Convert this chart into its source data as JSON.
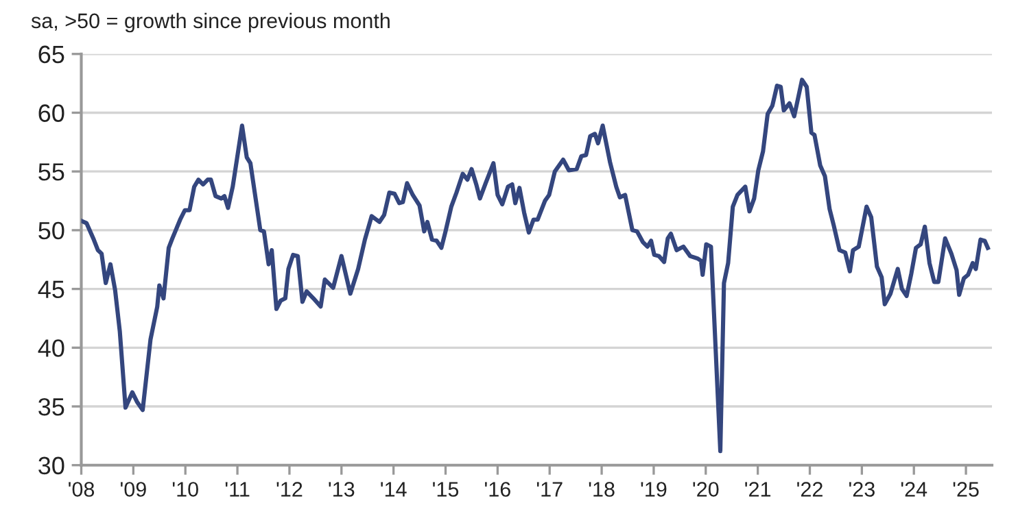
{
  "chart_data": {
    "type": "line",
    "subtitle": "sa, >50 = growth since previous month",
    "x": [
      2008.0,
      2008.1,
      2008.24,
      2008.32,
      2008.39,
      2008.47,
      2008.56,
      2008.65,
      2008.74,
      2008.85,
      2008.98,
      2009.07,
      2009.18,
      2009.33,
      2009.46,
      2009.5,
      2009.58,
      2009.68,
      2009.75,
      2009.9,
      2009.99,
      2010.08,
      2010.17,
      2010.25,
      2010.34,
      2010.43,
      2010.49,
      2010.58,
      2010.69,
      2010.75,
      2010.82,
      2010.91,
      2011.09,
      2011.18,
      2011.25,
      2011.35,
      2011.44,
      2011.51,
      2011.6,
      2011.66,
      2011.75,
      2011.83,
      2011.92,
      2011.98,
      2012.07,
      2012.16,
      2012.25,
      2012.33,
      2012.46,
      2012.6,
      2012.68,
      2012.84,
      2013.0,
      2013.17,
      2013.32,
      2013.45,
      2013.58,
      2013.73,
      2013.82,
      2013.92,
      2014.02,
      2014.11,
      2014.18,
      2014.26,
      2014.37,
      2014.5,
      2014.59,
      2014.65,
      2014.74,
      2014.83,
      2014.92,
      2015.0,
      2015.11,
      2015.21,
      2015.33,
      2015.42,
      2015.5,
      2015.59,
      2015.66,
      2015.77,
      2015.92,
      2016.0,
      2016.09,
      2016.2,
      2016.28,
      2016.34,
      2016.42,
      2016.51,
      2016.6,
      2016.69,
      2016.77,
      2016.91,
      2016.99,
      2017.1,
      2017.26,
      2017.37,
      2017.52,
      2017.61,
      2017.7,
      2017.78,
      2017.87,
      2017.93,
      2018.02,
      2018.16,
      2018.28,
      2018.35,
      2018.45,
      2018.59,
      2018.68,
      2018.79,
      2018.88,
      2018.95,
      2019.01,
      2019.1,
      2019.2,
      2019.27,
      2019.33,
      2019.44,
      2019.57,
      2019.7,
      2019.84,
      2019.91,
      2019.94,
      2020.01,
      2020.1,
      2020.28,
      2020.35,
      2020.43,
      2020.52,
      2020.61,
      2020.76,
      2020.84,
      2020.93,
      2021.01,
      2021.1,
      2021.19,
      2021.28,
      2021.37,
      2021.44,
      2021.5,
      2021.61,
      2021.7,
      2021.85,
      2021.94,
      2022.03,
      2022.09,
      2022.2,
      2022.29,
      2022.38,
      2022.46,
      2022.57,
      2022.68,
      2022.77,
      2022.83,
      2022.94,
      2023.09,
      2023.18,
      2023.29,
      2023.38,
      2023.44,
      2023.55,
      2023.69,
      2023.77,
      2023.86,
      2023.95,
      2024.04,
      2024.13,
      2024.21,
      2024.3,
      2024.39,
      2024.47,
      2024.6,
      2024.72,
      2024.82,
      2024.87,
      2024.96,
      2025.04,
      2025.13,
      2025.19,
      2025.28,
      2025.36,
      2025.42
    ],
    "series": [
      {
        "color": "#34467e",
        "values": [
          50.8,
          50.6,
          49.2,
          48.3,
          48.0,
          45.5,
          47.1,
          44.9,
          41.4,
          34.9,
          36.2,
          35.4,
          34.7,
          40.7,
          43.5,
          45.3,
          44.2,
          48.5,
          49.3,
          50.9,
          51.7,
          51.7,
          53.7,
          54.3,
          53.9,
          54.3,
          54.3,
          52.9,
          52.7,
          52.9,
          51.9,
          53.7,
          58.9,
          56.2,
          55.7,
          52.7,
          50.0,
          49.9,
          47.1,
          48.3,
          43.3,
          44.0,
          44.2,
          46.7,
          47.9,
          47.8,
          43.9,
          44.8,
          44.2,
          43.5,
          45.8,
          45.1,
          47.8,
          44.6,
          46.7,
          49.2,
          51.2,
          50.7,
          51.3,
          53.2,
          53.1,
          52.3,
          52.4,
          54.0,
          53.0,
          52.1,
          49.9,
          50.7,
          49.2,
          49.1,
          48.5,
          49.9,
          52.0,
          53.2,
          54.8,
          54.3,
          55.2,
          53.9,
          52.7,
          54.0,
          55.7,
          53.0,
          52.2,
          53.7,
          53.9,
          52.3,
          53.6,
          51.5,
          49.8,
          50.9,
          50.9,
          52.5,
          53.0,
          55.0,
          56.0,
          55.1,
          55.2,
          56.3,
          56.4,
          58.0,
          58.2,
          57.4,
          58.9,
          55.8,
          53.7,
          52.8,
          53.0,
          50.0,
          49.9,
          49.0,
          48.6,
          49.1,
          47.9,
          47.8,
          47.3,
          49.3,
          49.7,
          48.3,
          48.6,
          47.8,
          47.6,
          47.4,
          46.2,
          48.8,
          48.6,
          31.2,
          45.5,
          47.2,
          52.0,
          53.0,
          53.7,
          51.6,
          52.7,
          55.1,
          56.7,
          59.9,
          60.6,
          62.3,
          62.2,
          60.2,
          60.8,
          59.7,
          62.8,
          62.2,
          58.3,
          58.1,
          55.5,
          54.6,
          51.8,
          50.4,
          48.3,
          48.1,
          46.5,
          48.3,
          48.6,
          52.0,
          51.1,
          46.9,
          46.0,
          43.7,
          44.6,
          46.7,
          45.0,
          44.4,
          46.3,
          48.5,
          48.8,
          50.3,
          47.2,
          45.6,
          45.6,
          49.3,
          48.0,
          46.6,
          44.5,
          45.9,
          46.2,
          47.2,
          46.7,
          49.2,
          49.1,
          48.5
        ]
      }
    ],
    "xlim": [
      2008,
      2025.5
    ],
    "xticks": [
      {
        "value": 2008,
        "label": "'08"
      },
      {
        "value": 2009,
        "label": "'09"
      },
      {
        "value": 2010,
        "label": "'10"
      },
      {
        "value": 2011,
        "label": "'11"
      },
      {
        "value": 2012,
        "label": "'12"
      },
      {
        "value": 2013,
        "label": "'13"
      },
      {
        "value": 2014,
        "label": "'14"
      },
      {
        "value": 2015,
        "label": "'15"
      },
      {
        "value": 2016,
        "label": "'16"
      },
      {
        "value": 2017,
        "label": "'17"
      },
      {
        "value": 2018,
        "label": "'18"
      },
      {
        "value": 2019,
        "label": "'19"
      },
      {
        "value": 2020,
        "label": "'20"
      },
      {
        "value": 2021,
        "label": "'21"
      },
      {
        "value": 2022,
        "label": "'22"
      },
      {
        "value": 2023,
        "label": "'23"
      },
      {
        "value": 2024,
        "label": "'24"
      },
      {
        "value": 2025,
        "label": "'25"
      }
    ],
    "ylim": [
      30,
      65
    ],
    "yticks": [
      30,
      35,
      40,
      45,
      50,
      55,
      60,
      65
    ],
    "grid": "y",
    "marker": "none",
    "line_style": "solid"
  }
}
